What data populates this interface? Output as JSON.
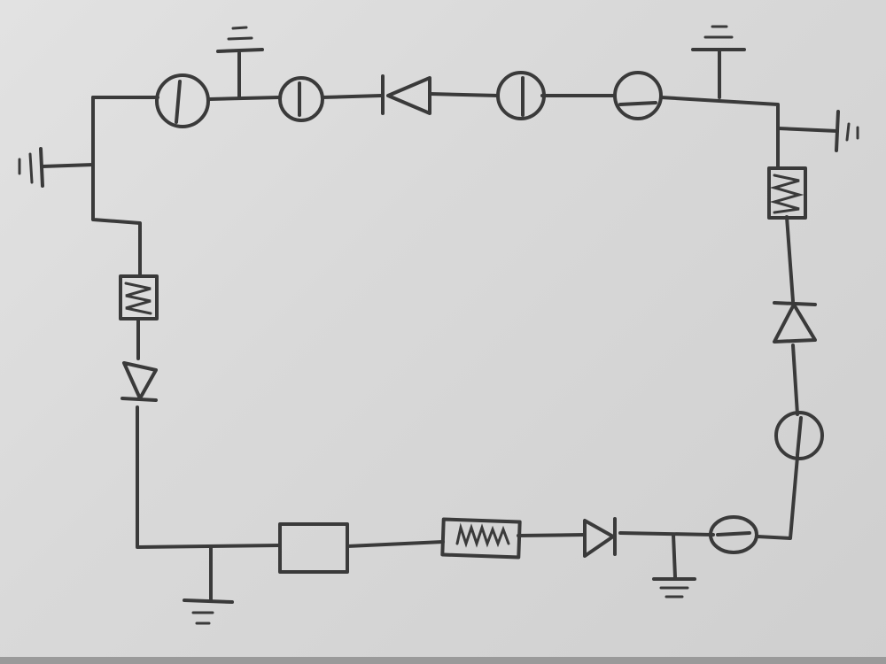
{
  "sheet": {
    "ink_color": "#3a3a3a",
    "paper_color": "#dcdcdc"
  },
  "components": {
    "top": [
      "meter",
      "ground",
      "meter",
      "diode",
      "meter",
      "meter",
      "ground"
    ],
    "right": [
      "ground",
      "resistor",
      "diode",
      "meter"
    ],
    "bottom": [
      "meter",
      "ground",
      "diode",
      "resistor",
      "box",
      "ground"
    ],
    "left": [
      "diode",
      "resistor",
      "ground"
    ]
  }
}
